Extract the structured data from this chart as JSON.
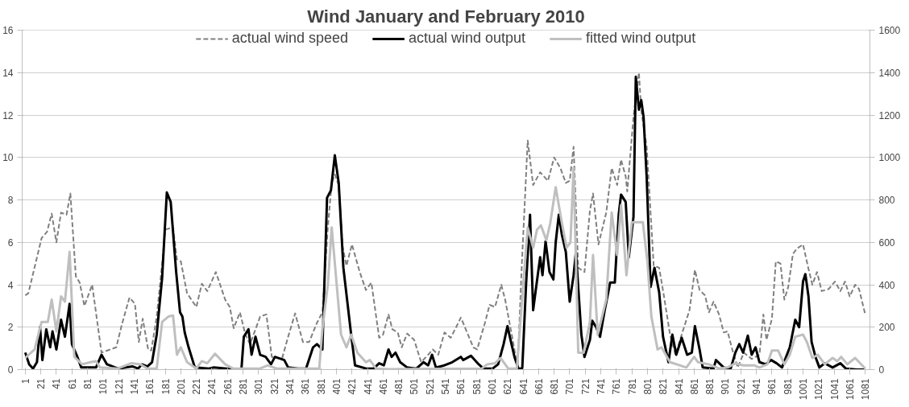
{
  "chart_data": {
    "type": "line",
    "title": "Wind January and February 2010",
    "xlim": [
      -3,
      1087
    ],
    "xticks": [
      1,
      21,
      41,
      61,
      81,
      101,
      121,
      141,
      161,
      181,
      201,
      221,
      241,
      261,
      281,
      301,
      321,
      341,
      361,
      381,
      401,
      421,
      441,
      461,
      481,
      501,
      521,
      541,
      561,
      581,
      601,
      621,
      641,
      661,
      681,
      701,
      721,
      741,
      761,
      781,
      801,
      821,
      841,
      861,
      881,
      901,
      921,
      941,
      961,
      981,
      1001,
      1021,
      1041,
      1061,
      1081
    ],
    "ylim": [
      0,
      16
    ],
    "yticks": [
      0,
      2,
      4,
      6,
      8,
      10,
      12,
      14,
      16
    ],
    "y2lim": [
      0,
      1600
    ],
    "y2ticks": [
      0,
      200,
      400,
      600,
      800,
      1000,
      1200,
      1400,
      1600
    ],
    "grid": "y",
    "legend": "top",
    "series": [
      {
        "name": "actual wind speed",
        "color": "#808080",
        "line_style": "dashed",
        "x": [
          1,
          5,
          22,
          29,
          35,
          41,
          47,
          54,
          59,
          66,
          71,
          77,
          87,
          99,
          118,
          125,
          135,
          142,
          147,
          152,
          159,
          163,
          170,
          177,
          181,
          191,
          196,
          201,
          209,
          221,
          228,
          235,
          246,
          258,
          264,
          269,
          277,
          284,
          290,
          303,
          311,
          318,
          331,
          339,
          348,
          358,
          366,
          376,
          383,
          390,
          395,
          399,
          404,
          409,
          414,
          421,
          431,
          439,
          446,
          456,
          461,
          468,
          473,
          480,
          485,
          492,
          501,
          510,
          519,
          525,
          532,
          540,
          548,
          555,
          561,
          564,
          577,
          582,
          592,
          598,
          605,
          613,
          618,
          627,
          634,
          639,
          647,
          654,
          663,
          673,
          681,
          689,
          696,
          701,
          706,
          712,
          720,
          727,
          731,
          738,
          748,
          755,
          762,
          767,
          773,
          775,
          783,
          790,
          793,
          800,
          809,
          816,
          822,
          830,
          837,
          845,
          855,
          862,
          868,
          875,
          880,
          886,
          893,
          899,
          904,
          910,
          917,
          925,
          935,
          945,
          950,
          954,
          961,
          966,
          972,
          977,
          982,
          988,
          993,
          1001,
          1008,
          1013,
          1019,
          1025,
          1034,
          1042,
          1049,
          1055,
          1061,
          1068,
          1073,
          1081
        ],
        "values": [
          3.5,
          3.6,
          6.2,
          6.5,
          7.35,
          6.0,
          7.4,
          7.3,
          8.3,
          4.4,
          4.1,
          3.0,
          4.0,
          0.8,
          1.05,
          2.1,
          3.4,
          3.1,
          1.3,
          2.4,
          0.95,
          0.9,
          2.5,
          5.0,
          6.6,
          6.7,
          5.2,
          5.1,
          3.6,
          2.95,
          4.05,
          3.7,
          4.6,
          3.3,
          2.95,
          1.95,
          2.7,
          1.65,
          1.2,
          2.5,
          2.6,
          0.6,
          0.5,
          1.55,
          2.65,
          1.3,
          1.3,
          2.2,
          2.7,
          6.7,
          8.8,
          9.2,
          8.7,
          5.8,
          4.9,
          5.9,
          4.6,
          3.75,
          4.1,
          1.5,
          1.65,
          2.6,
          1.9,
          1.75,
          1.05,
          1.7,
          1.4,
          0.35,
          0.7,
          0.95,
          0.7,
          1.75,
          1.5,
          2.0,
          2.45,
          2.2,
          1.05,
          0.95,
          2.2,
          3.05,
          2.95,
          4.0,
          3.3,
          1.55,
          0.1,
          4.6,
          10.8,
          8.7,
          9.3,
          8.9,
          10.0,
          9.5,
          8.8,
          8.9,
          10.5,
          4.8,
          4.6,
          7.5,
          8.3,
          5.9,
          7.4,
          9.5,
          8.7,
          9.9,
          9.1,
          8.4,
          11.9,
          14.0,
          12.2,
          10.5,
          4.9,
          4.8,
          3.5,
          1.65,
          0.7,
          1.65,
          2.8,
          4.7,
          3.75,
          3.5,
          2.7,
          3.2,
          2.6,
          1.75,
          1.8,
          0.95,
          0.1,
          0.8,
          0.5,
          0.7,
          2.6,
          1.4,
          2.4,
          5.1,
          5.0,
          3.3,
          3.9,
          5.45,
          5.7,
          5.9,
          4.75,
          4.0,
          4.6,
          3.7,
          3.8,
          4.15,
          3.7,
          4.15,
          3.45,
          4.0,
          3.8,
          2.6
        ]
      },
      {
        "name": "actual wind output",
        "color": "#000000",
        "line_style": "solid",
        "axis": "y2",
        "x": [
          1,
          6,
          11,
          16,
          20,
          23,
          28,
          33,
          36,
          41,
          47,
          52,
          58,
          61,
          68,
          73,
          85,
          92,
          99,
          106,
          120,
          139,
          146,
          151,
          158,
          164,
          170,
          177,
          183,
          188,
          195,
          200,
          203,
          206,
          211,
          219,
          237,
          243,
          268,
          279,
          282,
          288,
          292,
          297,
          303,
          310,
          317,
          322,
          334,
          339,
          352,
          362,
          371,
          376,
          383,
          389,
          394,
          399,
          404,
          410,
          420,
          425,
          439,
          449,
          456,
          462,
          468,
          472,
          477,
          483,
          492,
          504,
          513,
          519,
          524,
          529,
          540,
          550,
          561,
          564,
          574,
          584,
          590,
          602,
          609,
          616,
          621,
          624,
          630,
          635,
          640,
          645,
          650,
          654,
          657,
          663,
          666,
          670,
          675,
          680,
          683,
          687,
          691,
          696,
          701,
          706,
          709,
          716,
          720,
          727,
          730,
          735,
          740,
          746,
          753,
          759,
          764,
          767,
          773,
          777,
          783,
          786,
          790,
          793,
          796,
          800,
          805,
          810,
          816,
          821,
          828,
          833,
          838,
          845,
          852,
          858,
          862,
          868,
          872,
          886,
          889,
          899,
          908,
          914,
          919,
          924,
          930,
          935,
          940,
          945,
          953,
          960,
          967,
          974,
          984,
          991,
          996,
          1001,
          1004,
          1008,
          1012,
          1017,
          1022,
          1029,
          1039,
          1049,
          1056,
          1070,
          1081
        ],
        "values": [
          80,
          25,
          5,
          35,
          200,
          45,
          190,
          105,
          180,
          95,
          235,
          155,
          310,
          120,
          60,
          10,
          10,
          10,
          70,
          25,
          5,
          15,
          5,
          25,
          15,
          35,
          165,
          435,
          835,
          790,
          460,
          270,
          250,
          175,
          105,
          10,
          5,
          10,
          2,
          5,
          155,
          190,
          70,
          155,
          70,
          60,
          25,
          60,
          45,
          10,
          5,
          5,
          105,
          120,
          95,
          810,
          845,
          1010,
          880,
          480,
          165,
          20,
          5,
          5,
          30,
          20,
          95,
          60,
          80,
          35,
          10,
          5,
          35,
          20,
          70,
          10,
          20,
          35,
          60,
          45,
          65,
          25,
          5,
          5,
          25,
          120,
          205,
          155,
          60,
          5,
          5,
          410,
          730,
          280,
          365,
          530,
          445,
          605,
          460,
          425,
          600,
          730,
          635,
          555,
          320,
          445,
          555,
          165,
          60,
          140,
          230,
          200,
          155,
          280,
          410,
          410,
          730,
          825,
          790,
          530,
          720,
          1380,
          1225,
          1270,
          1190,
          905,
          390,
          480,
          365,
          155,
          35,
          165,
          70,
          150,
          70,
          80,
          205,
          95,
          10,
          5,
          45,
          10,
          5,
          80,
          120,
          80,
          160,
          70,
          105,
          35,
          25,
          45,
          30,
          10,
          105,
          235,
          200,
          415,
          450,
          345,
          130,
          60,
          10,
          30,
          10,
          30,
          5,
          0,
          0
        ]
      },
      {
        "name": "fitted wind output",
        "color": "#bfbfbf",
        "line_style": "solid",
        "axis": "y2",
        "x": [
          1,
          13,
          22,
          30,
          35,
          41,
          47,
          52,
          58,
          64,
          74,
          85,
          92,
          97,
          120,
          137,
          149,
          158,
          170,
          177,
          185,
          191,
          196,
          201,
          209,
          221,
          228,
          235,
          245,
          258,
          268,
          303,
          313,
          324,
          352,
          379,
          383,
          390,
          395,
          400,
          407,
          414,
          420,
          428,
          439,
          444,
          452,
          469,
          588,
          595,
          605,
          612,
          622,
          633,
          640,
          647,
          654,
          659,
          664,
          671,
          676,
          683,
          691,
          697,
          702,
          706,
          712,
          719,
          727,
          731,
          737,
          748,
          755,
          762,
          767,
          774,
          781,
          790,
          795,
          801,
          806,
          814,
          819,
          830,
          851,
          861,
          866,
          880,
          893,
          904,
          914,
          924,
          938,
          945,
          955,
          961,
          969,
          977,
          984,
          991,
          1001,
          1006,
          1013,
          1020,
          1029,
          1039,
          1045,
          1050,
          1058,
          1068,
          1081
        ],
        "values": [
          55,
          95,
          225,
          225,
          330,
          180,
          345,
          320,
          555,
          60,
          25,
          35,
          40,
          10,
          5,
          30,
          25,
          5,
          5,
          225,
          250,
          255,
          70,
          105,
          35,
          5,
          40,
          30,
          75,
          25,
          5,
          5,
          20,
          5,
          5,
          5,
          190,
          400,
          670,
          460,
          165,
          105,
          165,
          80,
          35,
          45,
          5,
          2,
          5,
          25,
          30,
          55,
          5,
          5,
          340,
          670,
          575,
          660,
          680,
          610,
          690,
          860,
          690,
          575,
          600,
          950,
          80,
          80,
          225,
          540,
          165,
          330,
          740,
          540,
          775,
          445,
          695,
          695,
          695,
          505,
          250,
          95,
          105,
          35,
          10,
          60,
          35,
          25,
          5,
          10,
          30,
          20,
          20,
          10,
          25,
          90,
          90,
          25,
          70,
          155,
          165,
          130,
          55,
          70,
          25,
          55,
          40,
          60,
          25,
          55,
          5
        ]
      }
    ]
  }
}
